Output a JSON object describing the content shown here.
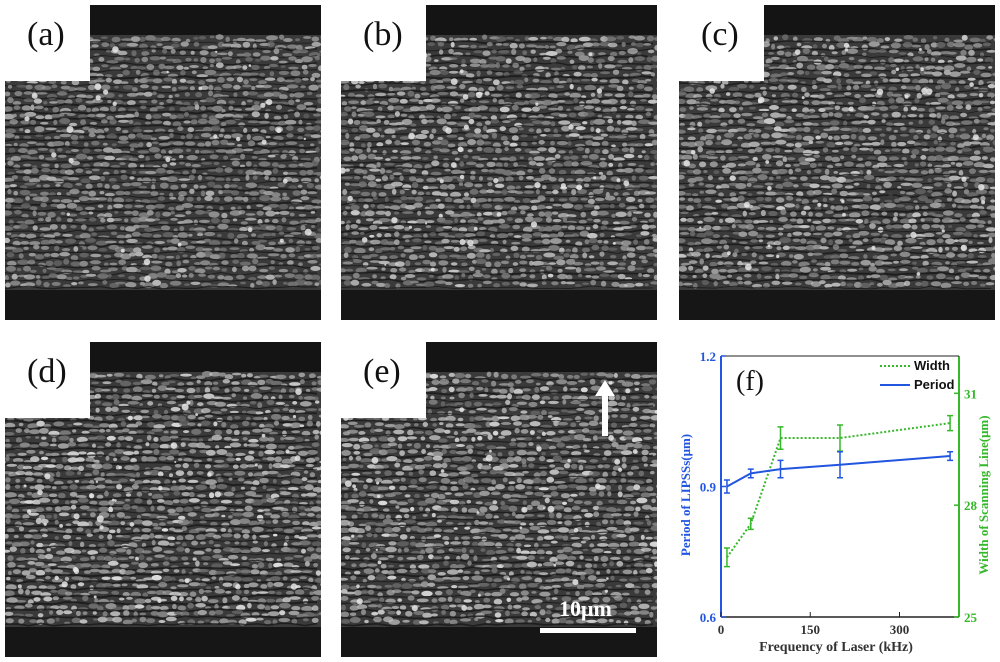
{
  "panels": [
    {
      "label": "(a)"
    },
    {
      "label": "(b)"
    },
    {
      "label": "(c)"
    },
    {
      "label": "(d)"
    },
    {
      "label": "(e)"
    }
  ],
  "scale_bar": {
    "text": "10μm"
  },
  "chart_data": {
    "type": "line",
    "panel_label": "(f)",
    "xlabel": "Frequency of Laser (kHz)",
    "ylabel_left": "Period of LIPSSs(μm)",
    "ylabel_right": "Width of Scanning Line(μm)",
    "xlim": [
      0,
      400
    ],
    "ylim_left": [
      0.6,
      1.2
    ],
    "ylim_right": [
      25,
      32
    ],
    "x_ticks": [
      "0",
      "150",
      "300"
    ],
    "y_ticks_left": [
      "0.6",
      "0.9",
      "1.2"
    ],
    "y_ticks_right": [
      "25",
      "28",
      "31"
    ],
    "colors": {
      "period": "#2255e0",
      "width": "#35b82a"
    },
    "legend_position": "top-right",
    "series": [
      {
        "name": "Width",
        "axis": "right",
        "style": "dotted",
        "x": [
          10,
          50,
          100,
          200,
          385
        ],
        "y": [
          26.6,
          27.5,
          29.8,
          29.8,
          30.2
        ],
        "err": [
          0.25,
          0.15,
          0.3,
          0.35,
          0.2
        ]
      },
      {
        "name": "Period",
        "axis": "left",
        "style": "solid",
        "x": [
          10,
          50,
          100,
          200,
          385
        ],
        "y": [
          0.9,
          0.93,
          0.94,
          0.95,
          0.97
        ],
        "err": [
          0.015,
          0.01,
          0.02,
          0.03,
          0.01
        ]
      }
    ]
  }
}
